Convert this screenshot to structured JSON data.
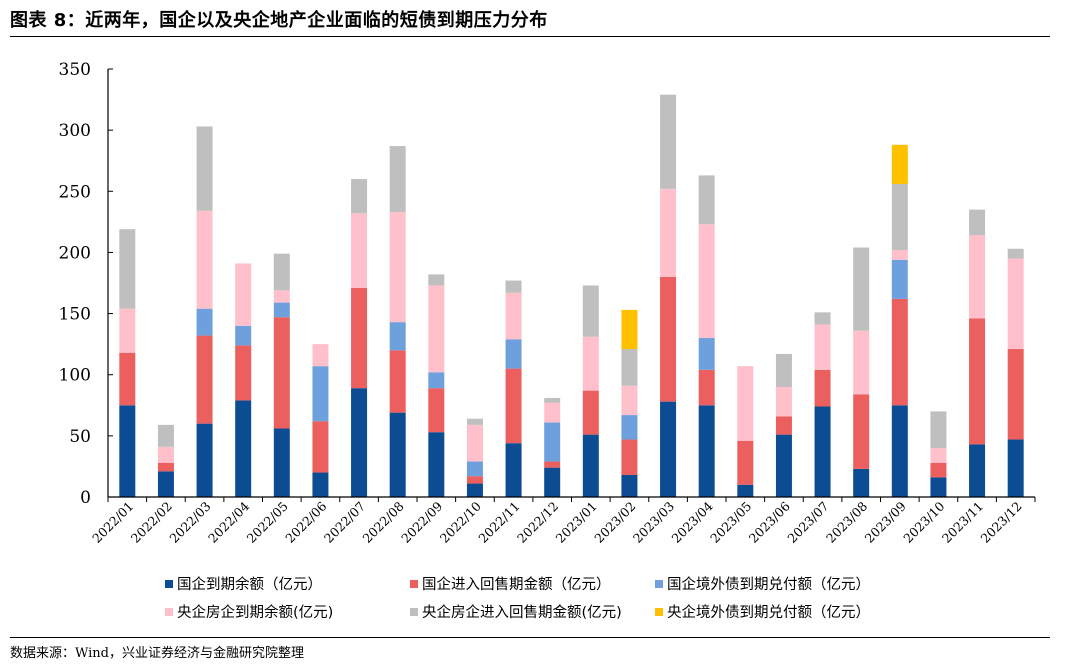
{
  "header": {
    "title": "图表 8：近两年，国企以及央企地产企业面临的短债到期压力分布"
  },
  "footer": {
    "source": "数据来源：Wind，兴业证券经济与金融研究院整理"
  },
  "chart_data": {
    "type": "bar",
    "stacked": true,
    "title": "",
    "xlabel": "",
    "ylabel": "",
    "ylim": [
      0,
      350
    ],
    "yticks": [
      0,
      50,
      100,
      150,
      200,
      250,
      300,
      350
    ],
    "grid": false,
    "legend_position": "bottom",
    "categories": [
      "2022/01",
      "2022/02",
      "2022/03",
      "2022/04",
      "2022/05",
      "2022/06",
      "2022/07",
      "2022/08",
      "2022/09",
      "2022/10",
      "2022/11",
      "2022/12",
      "2023/01",
      "2023/02",
      "2023/03",
      "2023/04",
      "2023/05",
      "2023/06",
      "2023/07",
      "2023/08",
      "2023/09",
      "2023/10",
      "2023/11",
      "2023/12"
    ],
    "series": [
      {
        "name": "国企到期余额（亿元）",
        "color": "#0B4C93",
        "values": [
          75,
          21,
          60,
          79,
          56,
          20,
          89,
          69,
          53,
          11,
          44,
          24,
          51,
          18,
          78,
          75,
          10,
          51,
          74,
          23,
          75,
          16,
          43,
          47
        ]
      },
      {
        "name": "国企进入回售期金额（亿元）",
        "color": "#EB5F5F",
        "values": [
          43,
          7,
          72,
          45,
          91,
          42,
          82,
          51,
          36,
          6,
          61,
          5,
          36,
          29,
          102,
          29,
          36,
          15,
          30,
          61,
          87,
          12,
          103,
          74
        ]
      },
      {
        "name": "国企境外债到期兑付额（亿元）",
        "color": "#6FA0DE",
        "values": [
          0,
          0,
          22,
          16,
          12,
          45,
          0,
          23,
          13,
          12,
          24,
          32,
          0,
          20,
          0,
          26,
          0,
          0,
          0,
          0,
          32,
          0,
          0,
          0
        ]
      },
      {
        "name": "央企房企到期余额(亿元)",
        "color": "#FFC0CB",
        "values": [
          36,
          13,
          80,
          51,
          10,
          18,
          61,
          90,
          71,
          30,
          38,
          16,
          44,
          24,
          72,
          93,
          61,
          24,
          37,
          52,
          8,
          12,
          68,
          74
        ]
      },
      {
        "name": "央企房企进入回售期金额(亿元)",
        "color": "#BFBFBF",
        "values": [
          65,
          18,
          69,
          0,
          30,
          0,
          28,
          54,
          9,
          5,
          10,
          4,
          42,
          30,
          77,
          40,
          0,
          27,
          10,
          68,
          54,
          30,
          21,
          8
        ]
      },
      {
        "name": "央企境外债到期兑付额（亿元）",
        "color": "#FFC000",
        "values": [
          0,
          0,
          0,
          0,
          0,
          0,
          0,
          0,
          0,
          0,
          0,
          0,
          0,
          32,
          0,
          0,
          0,
          0,
          0,
          0,
          32,
          0,
          0,
          0
        ]
      }
    ]
  }
}
